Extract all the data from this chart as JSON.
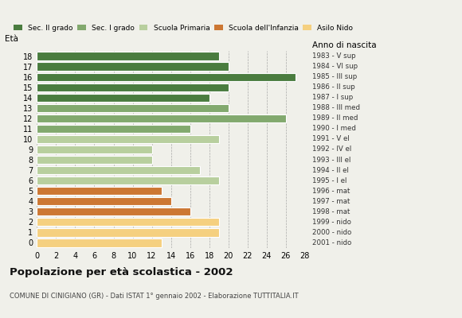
{
  "ages": [
    18,
    17,
    16,
    15,
    14,
    13,
    12,
    11,
    10,
    9,
    8,
    7,
    6,
    5,
    4,
    3,
    2,
    1,
    0
  ],
  "values": [
    19,
    20,
    27,
    20,
    18,
    20,
    26,
    16,
    19,
    12,
    12,
    17,
    19,
    13,
    14,
    16,
    19,
    19,
    13
  ],
  "anno_nascita": [
    "1983 - V sup",
    "1984 - VI sup",
    "1985 - III sup",
    "1986 - II sup",
    "1987 - I sup",
    "1988 - III med",
    "1989 - II med",
    "1990 - I med",
    "1991 - V el",
    "1992 - IV el",
    "1993 - III el",
    "1994 - II el",
    "1995 - I el",
    "1996 - mat",
    "1997 - mat",
    "1998 - mat",
    "1999 - nido",
    "2000 - nido",
    "2001 - nido"
  ],
  "bar_colors": [
    "#4a7c3f",
    "#4a7c3f",
    "#4a7c3f",
    "#4a7c3f",
    "#4a7c3f",
    "#82a96e",
    "#82a96e",
    "#82a96e",
    "#b8cf9e",
    "#b8cf9e",
    "#b8cf9e",
    "#b8cf9e",
    "#b8cf9e",
    "#cc7733",
    "#cc7733",
    "#cc7733",
    "#f5d080",
    "#f5d080",
    "#f5d080"
  ],
  "title": "Popolazione per età scolastica - 2002",
  "subtitle": "COMUNE DI CINIGIANO (GR) - Dati ISTAT 1° gennaio 2002 - Elaborazione TUTTITALIA.IT",
  "label_eta": "Età",
  "label_anno": "Anno di nascita",
  "xlim": [
    0,
    28
  ],
  "xticks": [
    0,
    2,
    4,
    6,
    8,
    10,
    12,
    14,
    16,
    18,
    20,
    22,
    24,
    26,
    28
  ],
  "legend_labels": [
    "Sec. II grado",
    "Sec. I grado",
    "Scuola Primaria",
    "Scuola dell'Infanzia",
    "Asilo Nido"
  ],
  "legend_colors": [
    "#4a7c3f",
    "#82a96e",
    "#b8cf9e",
    "#cc7733",
    "#f5d080"
  ],
  "bg_color": "#f0f0ea"
}
